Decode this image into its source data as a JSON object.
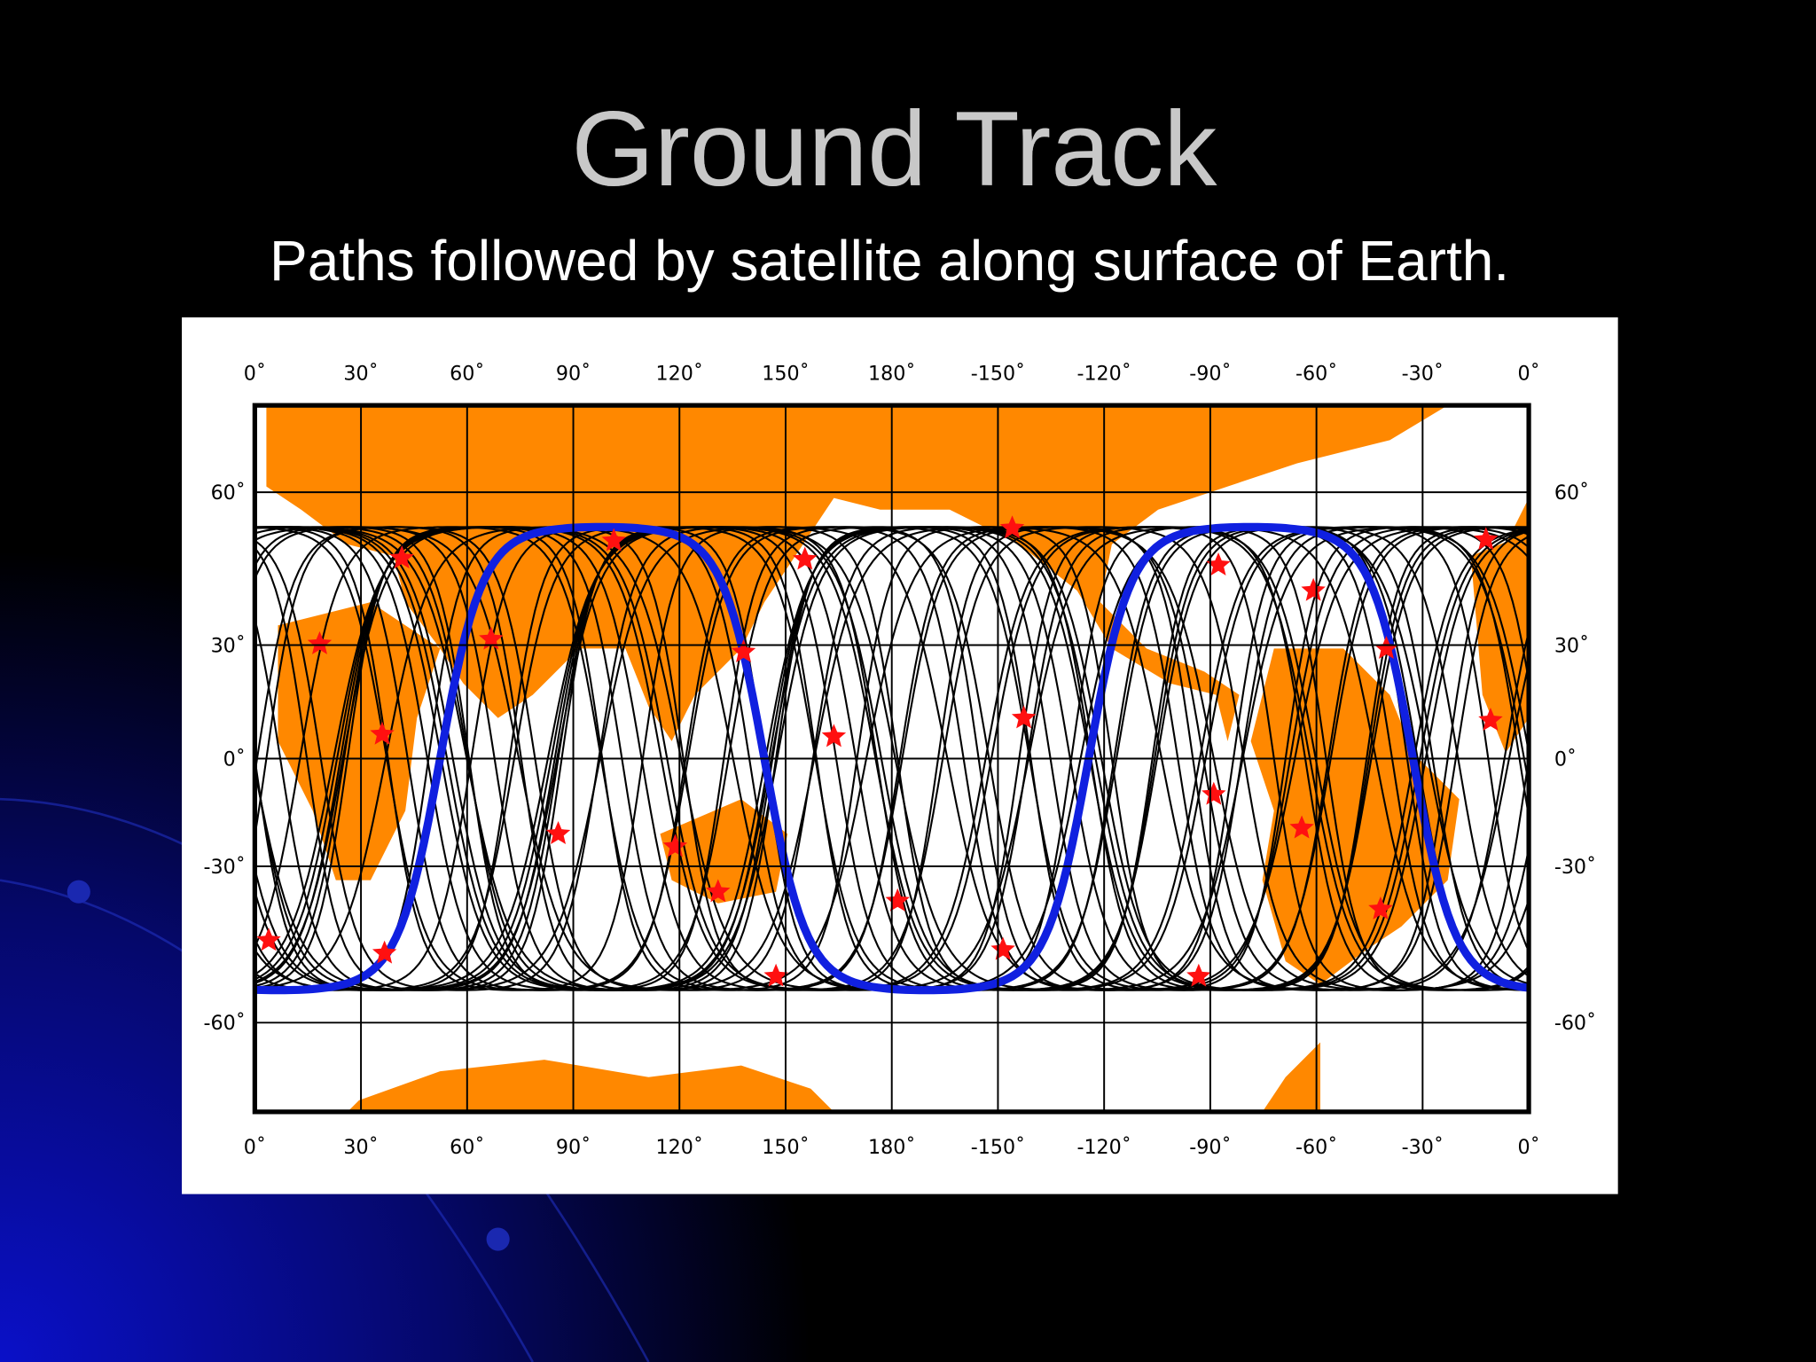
{
  "title": "Ground Track",
  "subtitle": "Paths followed by satellite along surface of Earth.",
  "map": {
    "longitude_labels": [
      "0˚",
      "30˚",
      "60˚",
      "90˚",
      "120˚",
      "150˚",
      "180˚",
      "-150˚",
      "-120˚",
      "-90˚",
      "-60˚",
      "-30˚",
      "0˚"
    ],
    "latitude_labels": [
      "60˚",
      "30˚",
      "0˚",
      "-30˚",
      "-60˚"
    ]
  }
}
